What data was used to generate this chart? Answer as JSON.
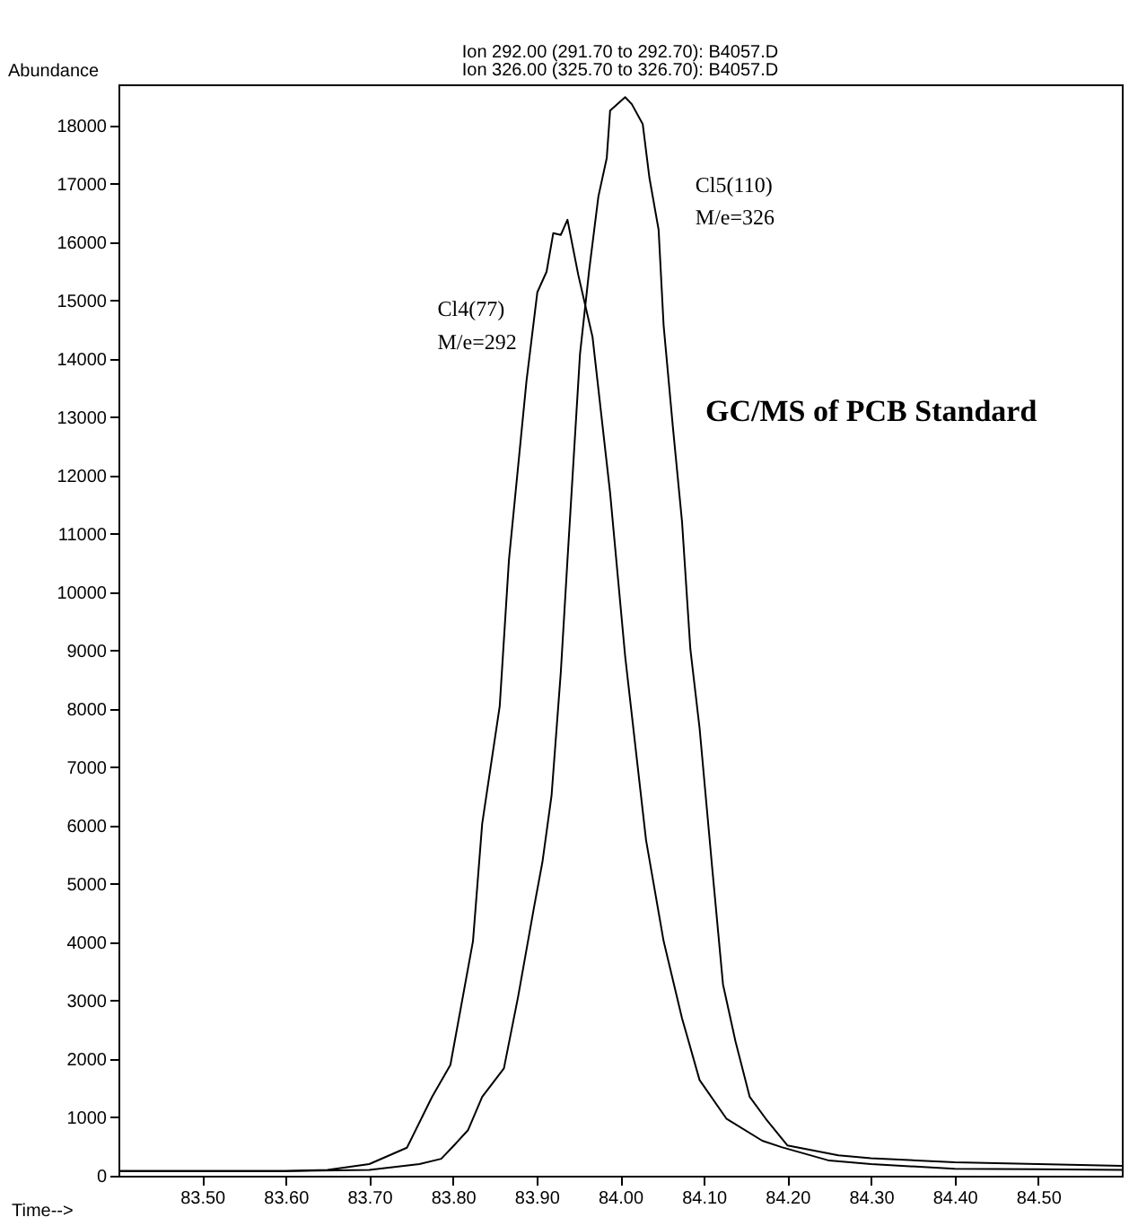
{
  "chart_data": {
    "type": "line",
    "title": "GC/MS of PCB Standard",
    "xlabel": "Time-->",
    "ylabel": "Abundance",
    "annotations": [
      "Ion 292.00 (291.70 to 292.70): B4057.D",
      "Ion 326.00 (325.70 to 326.70): B4057.D",
      "Cl4(77)",
      "M/e=292",
      "Cl5(110)",
      "M/e=326"
    ],
    "xlim": [
      83.4,
      84.6
    ],
    "ylim": [
      0,
      18700
    ],
    "xticks": [
      {
        "value": 83.5,
        "label": "83.50"
      },
      {
        "value": 83.6,
        "label": "83.60"
      },
      {
        "value": 83.7,
        "label": "83.70"
      },
      {
        "value": 83.8,
        "label": "83.80"
      },
      {
        "value": 83.9,
        "label": "83.90"
      },
      {
        "value": 84.0,
        "label": "84.00"
      },
      {
        "value": 84.1,
        "label": "84.10"
      },
      {
        "value": 84.2,
        "label": "84.20"
      },
      {
        "value": 84.3,
        "label": "84.30"
      },
      {
        "value": 84.4,
        "label": "84.40"
      },
      {
        "value": 84.5,
        "label": "84.50"
      }
    ],
    "yticks": [
      0,
      1000,
      2000,
      3000,
      4000,
      5000,
      6000,
      7000,
      8000,
      9000,
      10000,
      11000,
      12000,
      13000,
      14000,
      15000,
      16000,
      17000,
      18000
    ],
    "grid": false,
    "marker": "none",
    "line_style": "solid",
    "series": [
      {
        "color": "#000000",
        "x": [
          83.4,
          83.5,
          83.6,
          83.65,
          83.7,
          83.745,
          83.775,
          83.797,
          83.824,
          83.835,
          83.856,
          83.867,
          83.888,
          83.901,
          83.912,
          83.92,
          83.929,
          83.937,
          83.95,
          83.967,
          83.988,
          84.006,
          84.031,
          84.052,
          84.074,
          84.095,
          84.127,
          84.17,
          84.193,
          84.25,
          84.3,
          84.4,
          84.5,
          84.6
        ],
        "values": [
          80,
          80,
          80,
          100,
          200,
          480,
          1350,
          1900,
          4020,
          6030,
          8050,
          10550,
          13620,
          15140,
          15490,
          16150,
          16120,
          16380,
          15430,
          14370,
          11700,
          8900,
          5750,
          4020,
          2700,
          1640,
          980,
          600,
          490,
          260,
          200,
          120,
          110,
          100
        ]
      },
      {
        "color": "#000000",
        "x": [
          83.4,
          83.5,
          83.6,
          83.7,
          83.76,
          83.786,
          83.8,
          83.818,
          83.835,
          83.861,
          83.878,
          83.897,
          83.907,
          83.918,
          83.929,
          83.937,
          83.952,
          83.963,
          83.974,
          83.984,
          83.988,
          84.006,
          84.014,
          84.027,
          84.035,
          84.046,
          84.052,
          84.063,
          84.074,
          84.084,
          84.095,
          84.11,
          84.123,
          84.138,
          84.155,
          84.174,
          84.2,
          84.261,
          84.3,
          84.4,
          84.5,
          84.6
        ],
        "values": [
          80,
          80,
          80,
          100,
          200,
          290,
          500,
          780,
          1350,
          1840,
          3070,
          4600,
          5370,
          6520,
          8620,
          10550,
          14080,
          15520,
          16780,
          17440,
          18250,
          18480,
          18360,
          18020,
          17100,
          16210,
          14570,
          12840,
          11210,
          9020,
          7670,
          5290,
          3280,
          2300,
          1350,
          980,
          520,
          350,
          300,
          230,
          200,
          170
        ]
      }
    ]
  }
}
